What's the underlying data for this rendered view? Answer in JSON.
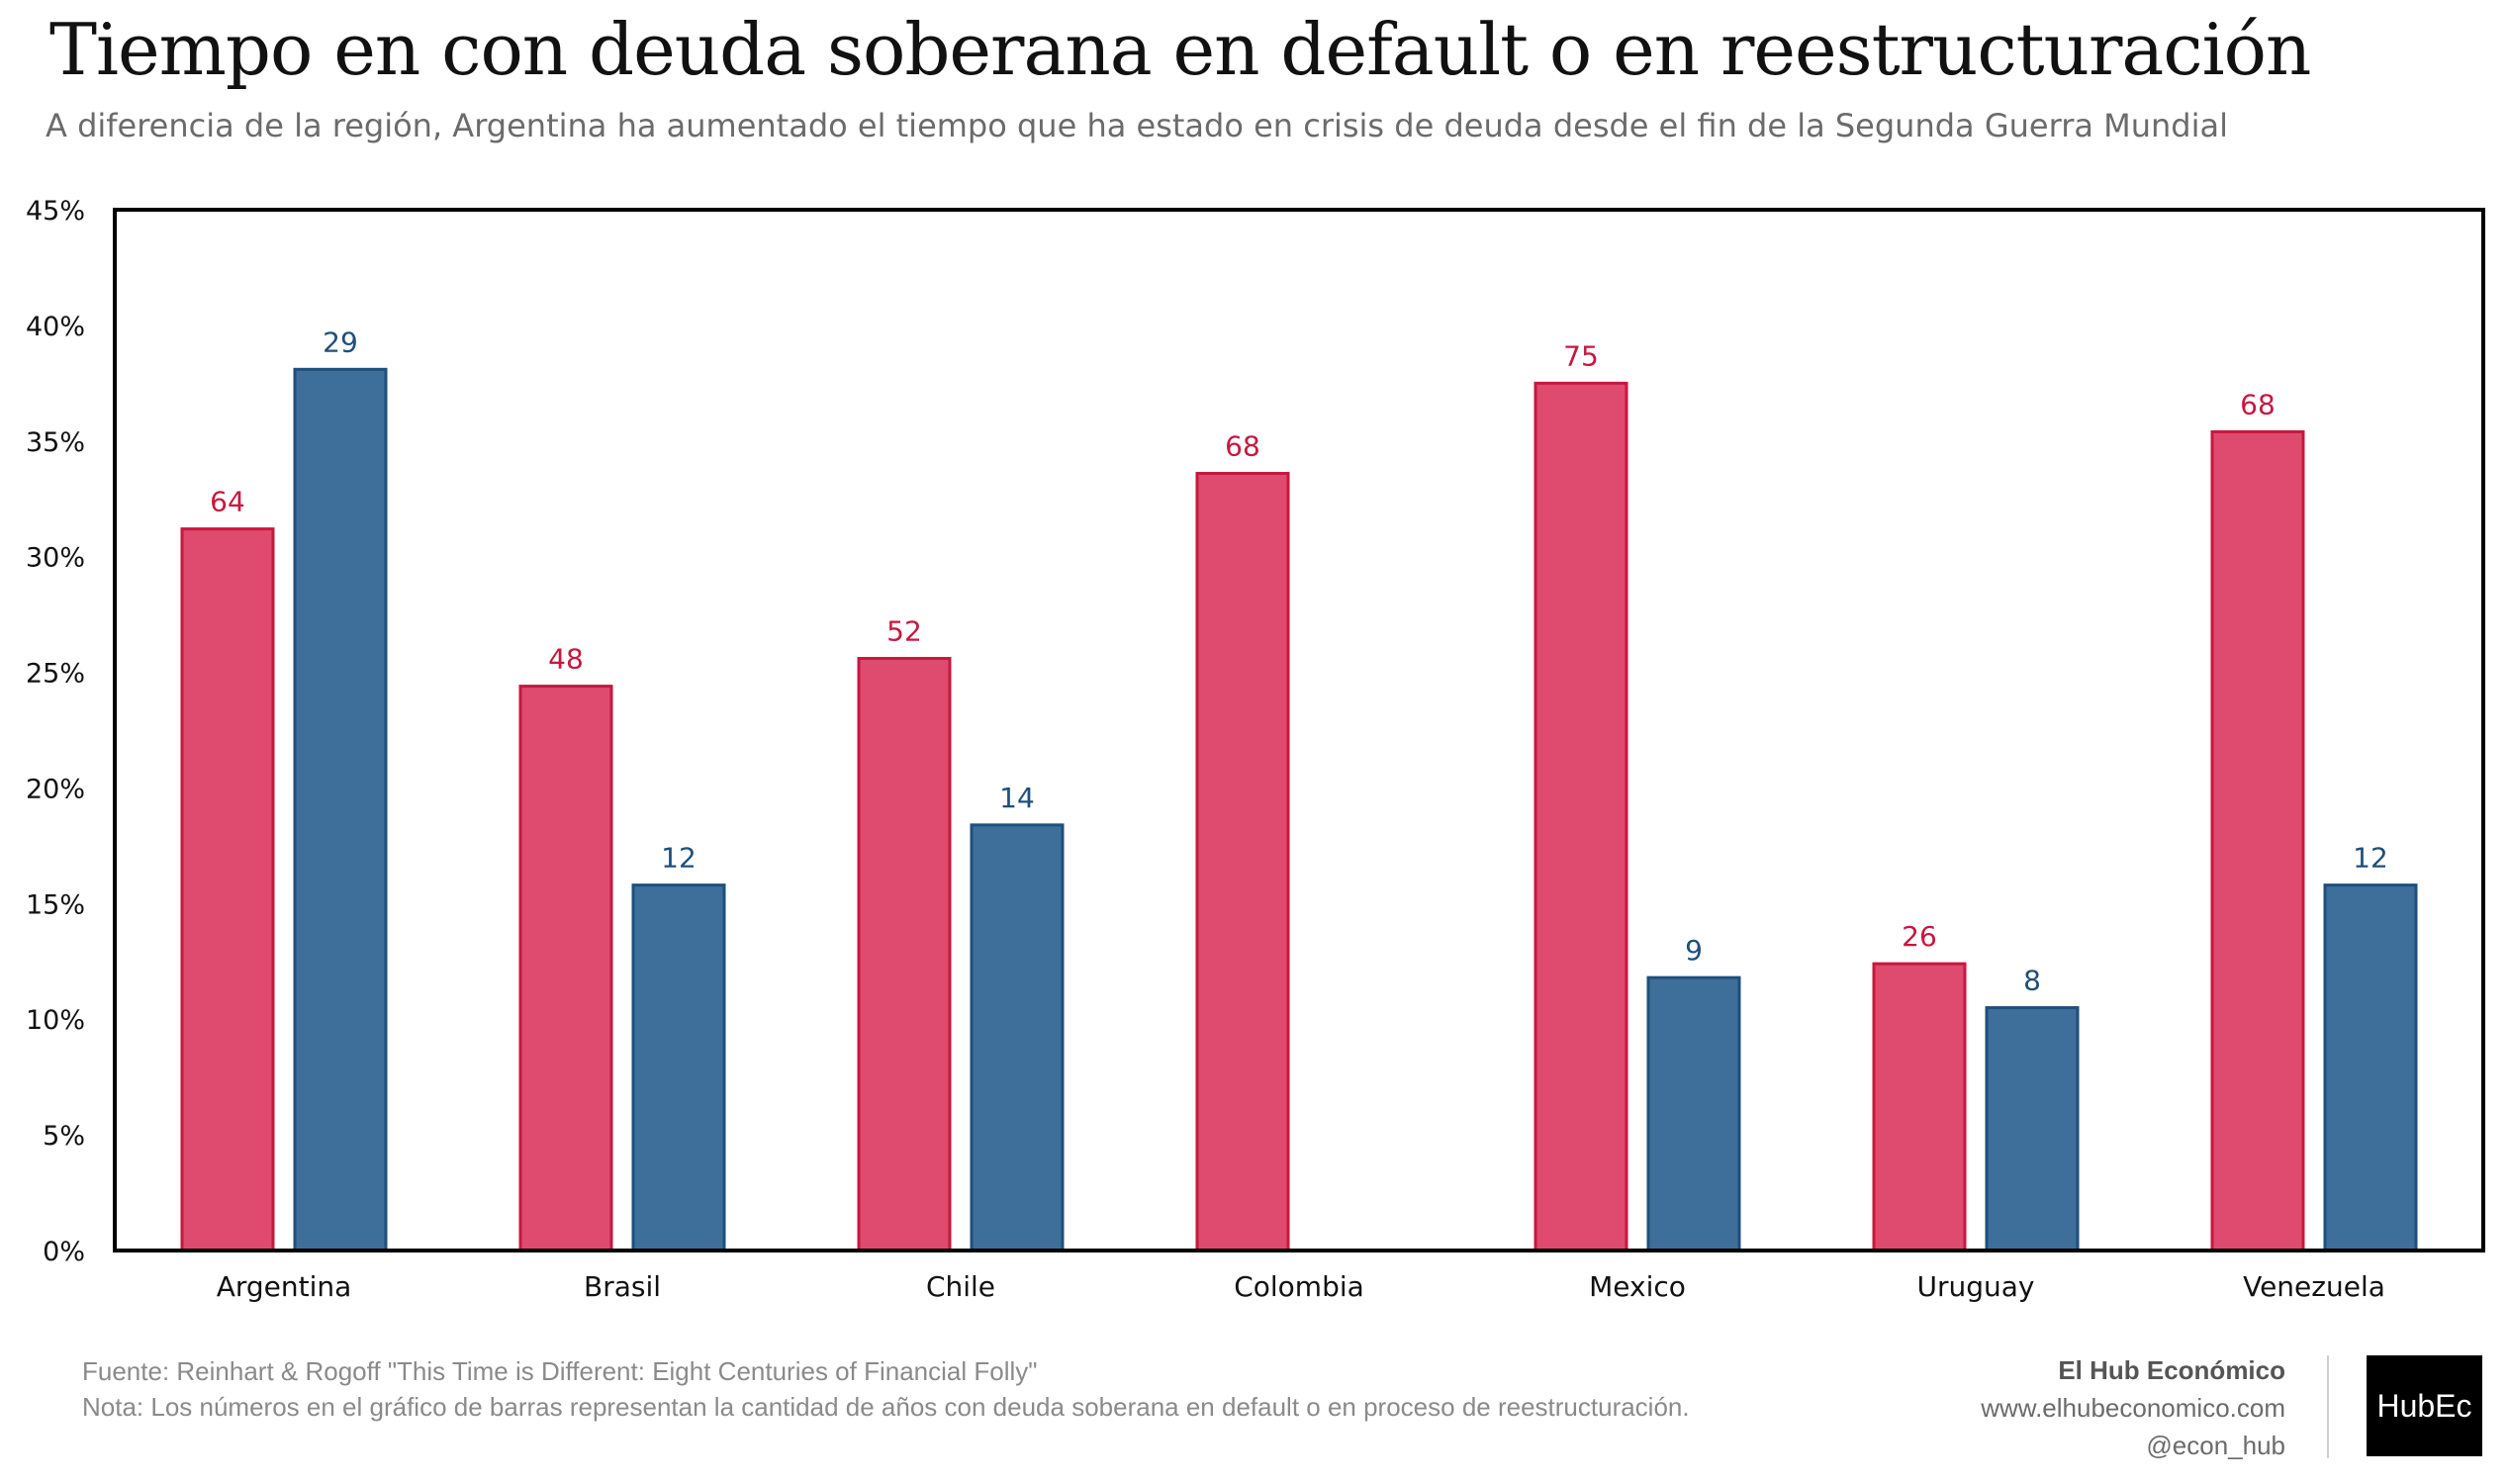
{
  "header": {
    "title": "Tiempo en con deuda soberana en default o en reestructuración",
    "subtitle": "A diferencia de la región, Argentina ha aumentado el tiempo que ha estado en crisis de deuda desde el fin de la Segunda Guerra Mundial"
  },
  "chart_data": {
    "type": "bar",
    "categories": [
      "Argentina",
      "Brasil",
      "Chile",
      "Colombia",
      "Mexico",
      "Uruguay",
      "Venezuela"
    ],
    "series": [
      {
        "color": "#de4b6e",
        "stroke": "#c8173f",
        "label_color": "#c8173f",
        "values": [
          31.2,
          24.4,
          25.6,
          33.6,
          37.5,
          12.4,
          35.4
        ],
        "labels": [
          "64",
          "48",
          "52",
          "68",
          "75",
          "26",
          "68"
        ]
      },
      {
        "color": "#3e6f9b",
        "stroke": "#1f4f7b",
        "label_color": "#1f4f7b",
        "values": [
          38.1,
          15.8,
          18.4,
          null,
          11.8,
          10.5,
          15.8
        ],
        "labels": [
          "29",
          "12",
          "14",
          "",
          "9",
          "8",
          "12"
        ]
      }
    ],
    "ylim": [
      0,
      45
    ],
    "yticks": [
      "0%",
      "5%",
      "10%",
      "15%",
      "20%",
      "25%",
      "30%",
      "35%",
      "40%",
      "45%"
    ],
    "ytick_values": [
      0,
      5,
      10,
      15,
      20,
      25,
      30,
      35,
      40,
      45
    ],
    "grid": false,
    "legend": "none"
  },
  "footer": {
    "source": "Fuente: Reinhart & Rogoff \"This Time is Different: Eight Centuries of Financial Folly\"",
    "note": "Nota: Los números en el gráfico de barras representan la cantidad de años con deuda soberana en default o en proceso de reestructuración."
  },
  "brand": {
    "name": "El Hub Económico",
    "website": "www.elhubeconomico.com",
    "handle": "@econ_hub",
    "logo_text": "HubEc"
  }
}
